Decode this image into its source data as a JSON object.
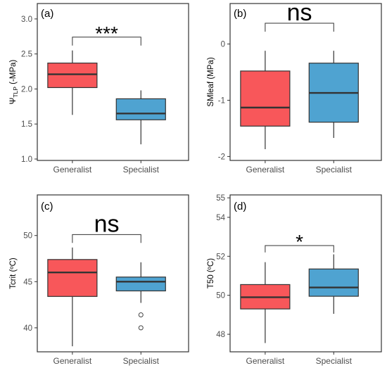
{
  "colors": {
    "generalist": "#f8575a",
    "specialist": "#4fa3d1",
    "median": "#333333",
    "frame": "#333333"
  },
  "chart_data": [
    {
      "type": "box",
      "panel": "(a)",
      "ylabel_main": "Ψ",
      "ylabel_sub": "TLP",
      "ylabel_rest": " (-MPa)",
      "ylim": [
        0.98,
        3.22
      ],
      "yticks": [
        "1.0",
        "1.5",
        "2.0",
        "2.5",
        "3.0"
      ],
      "categories": [
        "Generalist",
        "Specialist"
      ],
      "boxes": [
        {
          "category": "Generalist",
          "whisker_low": 1.63,
          "q1": 2.02,
          "median": 2.21,
          "q3": 2.37,
          "whisker_high": 2.55,
          "outliers": []
        },
        {
          "category": "Specialist",
          "whisker_low": 1.21,
          "q1": 1.56,
          "median": 1.65,
          "q3": 1.86,
          "whisker_high": 1.98,
          "outliers": []
        }
      ],
      "significance": "***",
      "bracket_y": 2.74,
      "bracket_drop": 0.12
    },
    {
      "type": "box",
      "panel": "(b)",
      "ylabel_main": "SMleaf (MPa)",
      "ylim": [
        -2.07,
        0.72
      ],
      "yticks": [
        "-2",
        "-1",
        "0"
      ],
      "categories": [
        "Generalist",
        "Specialist"
      ],
      "boxes": [
        {
          "category": "Generalist",
          "whisker_low": -1.87,
          "q1": -1.46,
          "median": -1.13,
          "q3": -0.48,
          "whisker_high": -0.12,
          "outliers": []
        },
        {
          "category": "Specialist",
          "whisker_low": -1.67,
          "q1": -1.39,
          "median": -0.87,
          "q3": -0.34,
          "whisker_high": -0.12,
          "outliers": []
        }
      ],
      "significance": "ns",
      "bracket_y": 0.37,
      "bracket_drop": 0.15
    },
    {
      "type": "box",
      "panel": "(c)",
      "ylabel_main": "Tcrit (ºC)",
      "ylim": [
        37.4,
        54.4
      ],
      "yticks": [
        "40",
        "45",
        "50"
      ],
      "categories": [
        "Generalist",
        "Specialist"
      ],
      "boxes": [
        {
          "category": "Generalist",
          "whisker_low": 38.0,
          "q1": 43.4,
          "median": 46.0,
          "q3": 47.4,
          "whisker_high": 48.7,
          "outliers": []
        },
        {
          "category": "Specialist",
          "whisker_low": 42.7,
          "q1": 44.0,
          "median": 45.0,
          "q3": 45.5,
          "whisker_high": 47.1,
          "outliers": [
            41.4,
            40.0
          ]
        }
      ],
      "significance": "ns",
      "bracket_y": 50.1,
      "bracket_drop": 0.9
    },
    {
      "type": "box",
      "panel": "(d)",
      "ylabel_main": "T50 (ºC)",
      "ylim": [
        47.1,
        55.15
      ],
      "yticks": [
        "48",
        "50",
        "52",
        "54",
        "55"
      ],
      "categories": [
        "Generalist",
        "Specialist"
      ],
      "boxes": [
        {
          "category": "Generalist",
          "whisker_low": 47.55,
          "q1": 49.3,
          "median": 49.9,
          "q3": 50.55,
          "whisker_high": 51.7,
          "outliers": []
        },
        {
          "category": "Specialist",
          "whisker_low": 49.05,
          "q1": 49.95,
          "median": 50.4,
          "q3": 51.35,
          "whisker_high": 52.1,
          "outliers": []
        }
      ],
      "significance": "*",
      "bracket_y": 52.55,
      "bracket_drop": 0.35
    }
  ]
}
